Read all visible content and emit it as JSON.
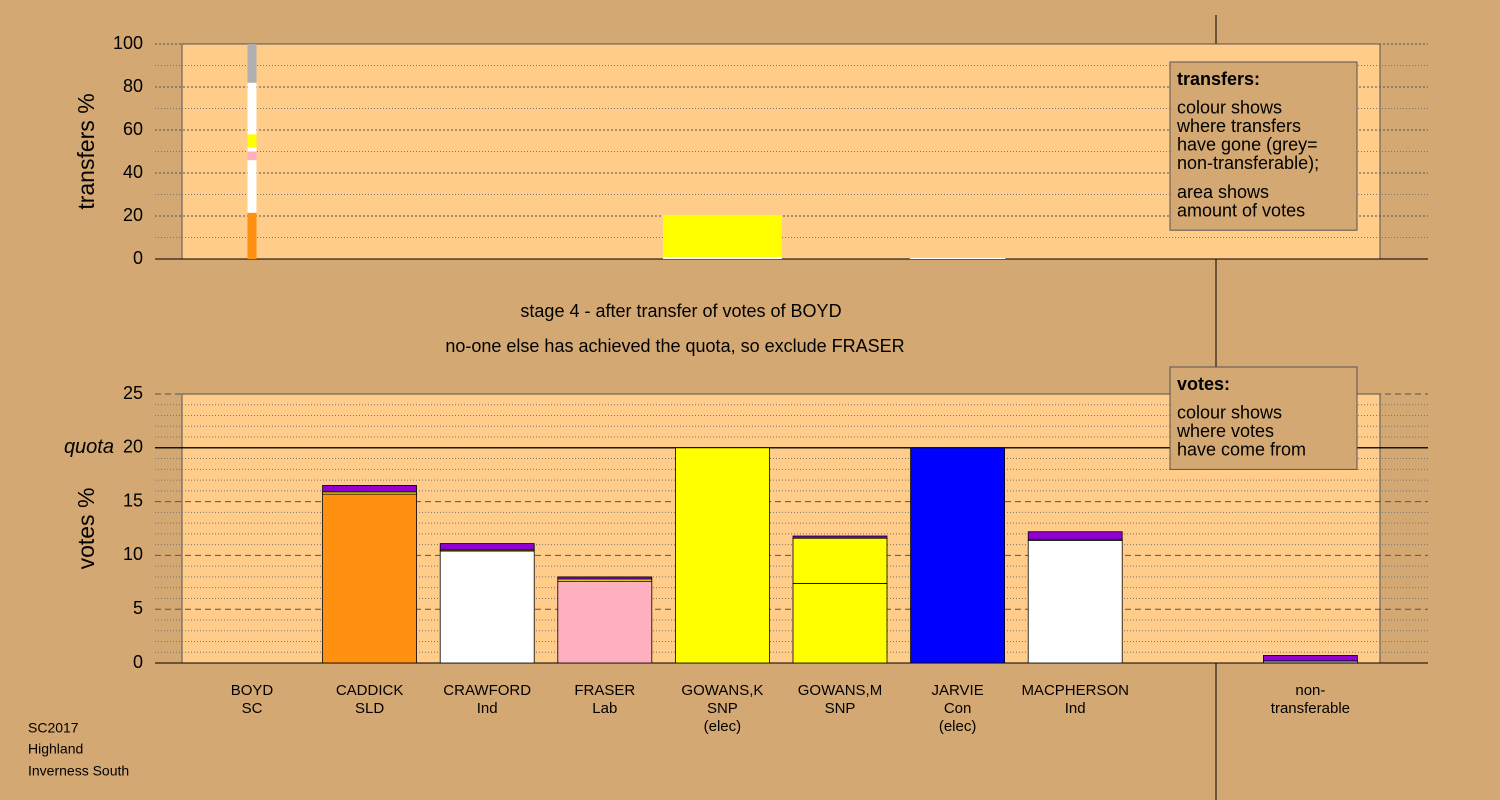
{
  "chart_data": [
    {
      "type": "transfer-bar",
      "ylabel": "transfers %",
      "ylim": [
        0,
        100
      ],
      "yticks": [
        0,
        20,
        40,
        60,
        80,
        100
      ],
      "minor_grid_step": 10,
      "grid_style": "dotted",
      "columns": [
        {
          "votes": 0.5,
          "segments": [
            {
              "color": "#ff9010",
              "value": 21.5
            },
            {
              "color": "#ffffff",
              "value": 24.5
            },
            {
              "color": "#ffb0c0",
              "value": 4
            },
            {
              "color": "#ffffff",
              "value": 2
            },
            {
              "color": "#ffff00",
              "value": 6
            },
            {
              "color": "#ffffff",
              "value": 24
            },
            {
              "color": "#b0b0b0",
              "value": 18
            }
          ]
        },
        null,
        null,
        null,
        {
          "votes": 6.6,
          "segments": [
            {
              "color": "#ffffff",
              "value": 1
            },
            {
              "color": "#ffff00",
              "value": 19.5
            }
          ]
        },
        null,
        {
          "votes": 5.3,
          "segments": [
            {
              "color": "#ffffff",
              "value": 0.5
            }
          ]
        },
        null,
        null,
        null
      ],
      "legend": {
        "title": "transfers:",
        "paragraphs": [
          [
            "colour shows",
            "where transfers",
            "have gone (grey=",
            "non-transferable);"
          ],
          [
            "area shows",
            "amount of votes"
          ]
        ]
      }
    },
    {
      "type": "stacked-bar",
      "ylabel": "votes %",
      "ylim": [
        0,
        25
      ],
      "yticks": [
        0,
        5,
        10,
        15,
        20,
        25
      ],
      "minor_grid_step": 1,
      "grid_style": "dashed",
      "quota": 20,
      "quota_label": "quota",
      "categories": [
        [
          "BOYD",
          "SC"
        ],
        [
          "CADDICK",
          "SLD"
        ],
        [
          "CRAWFORD",
          "Ind"
        ],
        [
          "FRASER",
          "Lab"
        ],
        [
          "GOWANS,K",
          "SNP",
          "(elec)"
        ],
        [
          "GOWANS,M",
          "SNP"
        ],
        [
          "JARVIE",
          "Con",
          "(elec)"
        ],
        [
          "MACPHERSON",
          "Ind"
        ],
        null,
        [
          "non-",
          "transferable"
        ]
      ],
      "series": [
        {
          "colors": [
            "#9000d0",
            "#ff9010",
            "#ffffff",
            "#ffb0c0",
            "#ffff00",
            "#ffff00",
            "#0000ff",
            "#ffffff",
            null,
            "#b0b0b0"
          ],
          "values": [
            0,
            15.7,
            10.4,
            7.6,
            20,
            7.4,
            20,
            11.4,
            null,
            0.2
          ]
        },
        {
          "color": "#ffff00",
          "values": [
            0,
            0.2,
            0.1,
            0.2,
            0,
            4.2,
            0,
            0.1,
            null,
            0
          ]
        },
        {
          "color": "#9000d0",
          "values": [
            0,
            0.6,
            0.6,
            0.2,
            0,
            0.2,
            0,
            0.7,
            null,
            0.5
          ]
        }
      ],
      "legend": {
        "title": "votes:",
        "paragraphs": [
          [
            "colour shows",
            "where votes",
            "have come from"
          ]
        ]
      }
    }
  ],
  "captions": [
    "stage 4 - after transfer of votes of BOYD",
    "no-one else has achieved the quota, so exclude FRASER"
  ],
  "footer": [
    "SC2017",
    "Highland",
    "Inverness South"
  ]
}
